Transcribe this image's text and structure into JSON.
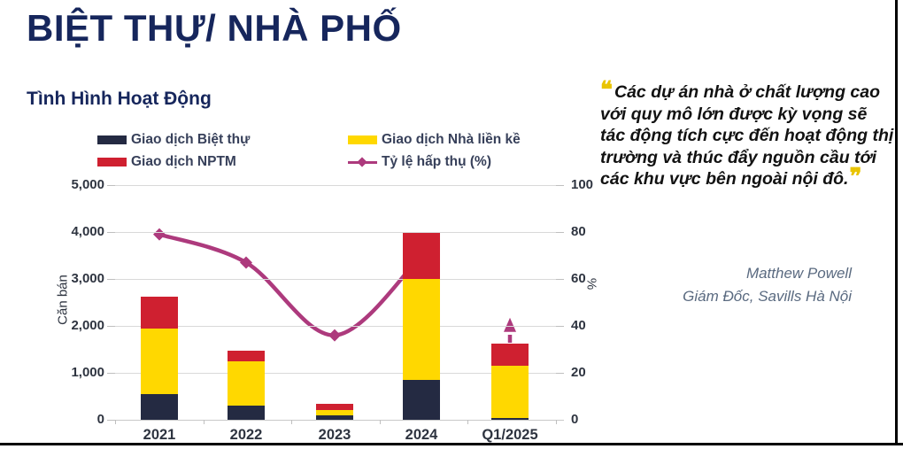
{
  "page": {
    "title": "BIỆT THỰ/ NHÀ PHỐ",
    "section_title": "Tình Hình Hoạt Động"
  },
  "legend": {
    "position": "top",
    "items": [
      {
        "label": "Giao dịch Biệt thự",
        "color": "#242A42",
        "type": "swatch"
      },
      {
        "label": "Giao dịch Nhà liền kề",
        "color": "#FFD800",
        "type": "swatch"
      },
      {
        "label": "Giao dịch NPTM",
        "color": "#CF2030",
        "type": "swatch"
      },
      {
        "label": "Tỷ lệ hấp thụ (%)",
        "color": "#AD3A7D",
        "type": "line"
      }
    ]
  },
  "chart_data": {
    "type": "combo: stacked bar + line",
    "categories": [
      "2021",
      "2022",
      "2023",
      "2024",
      "Q1/2025"
    ],
    "series": [
      {
        "name": "Giao dịch Biệt thự",
        "type": "bar",
        "color": "#242A42",
        "values": [
          550,
          300,
          90,
          850,
          40
        ]
      },
      {
        "name": "Giao dịch Nhà liền kề",
        "type": "bar",
        "color": "#FFD800",
        "values": [
          1390,
          950,
          110,
          2150,
          1110
        ]
      },
      {
        "name": "Giao dịch NPTM",
        "type": "bar",
        "color": "#CF2030",
        "values": [
          680,
          220,
          140,
          980,
          470
        ]
      },
      {
        "name": "Tỷ lệ hấp thụ (%)",
        "type": "line",
        "color": "#AD3A7D",
        "values": [
          79,
          67,
          36,
          70,
          null
        ],
        "projection": {
          "category": "Q1/2025",
          "value": 42,
          "style": "dashed-vertical-up-arrow"
        }
      }
    ],
    "bar_totals": [
      2620,
      1470,
      340,
      3980,
      1620
    ],
    "left_axis": {
      "title": "Căn bán",
      "ticks": [
        "5,000",
        "4,000",
        "3,000",
        "2,000",
        "1,000",
        "0"
      ],
      "range": [
        0,
        5000
      ]
    },
    "right_axis": {
      "title": "%",
      "ticks": [
        "100",
        "80",
        "60",
        "40",
        "20",
        "0"
      ],
      "range": [
        0,
        100
      ]
    },
    "grid": true,
    "legend_position": "top"
  },
  "quote": {
    "open_mark": "❝",
    "close_mark": "❞",
    "text": "Các dự án nhà ở chất lượng cao với quy mô lớn được kỳ vọng sẽ tác động tích cực đến hoạt động thị trường và thúc đẩy nguồn cầu tới các khu vực bên ngoài nội đô.",
    "author": "Matthew Powell",
    "role": "Giám Đốc,  Savills  Hà Nội"
  }
}
